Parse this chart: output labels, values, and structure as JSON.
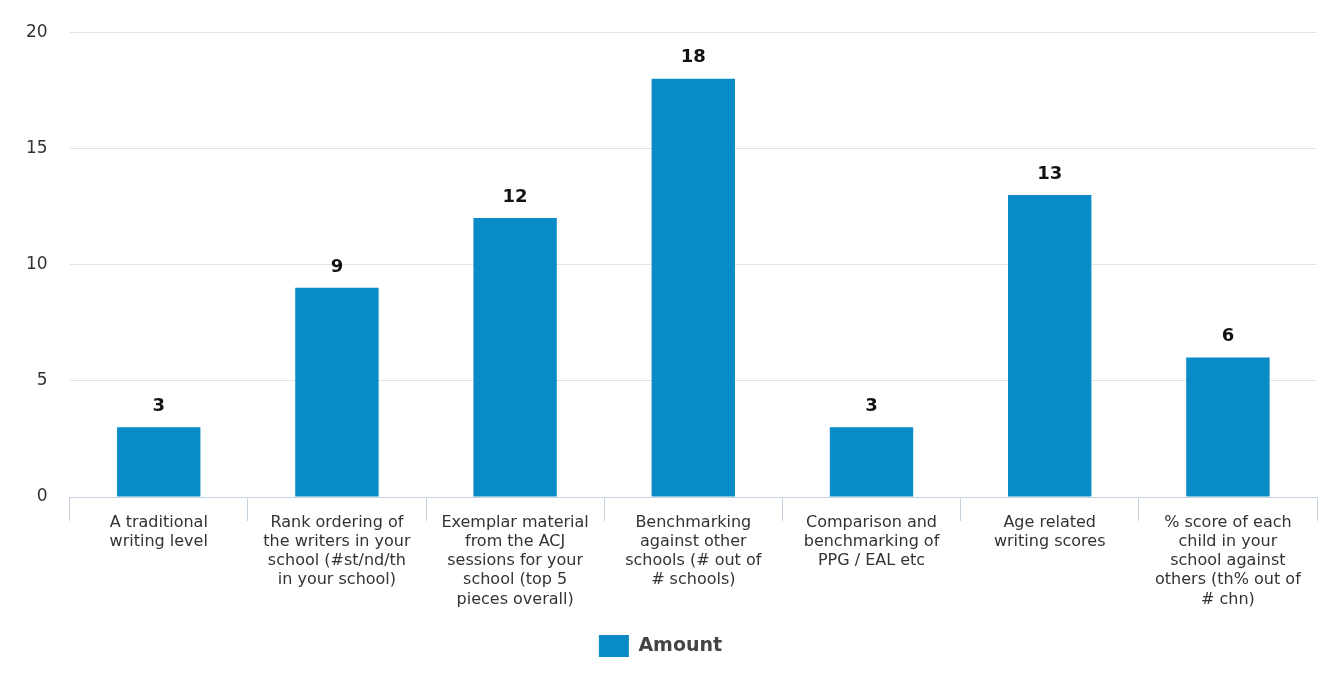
{
  "chart_data": {
    "type": "bar",
    "categories": [
      "A traditional writing level",
      "Rank ordering of the writers in your school (#st/nd/th in your school)",
      "Exemplar material from the ACJ sessions for your school (top 5 pieces overall)",
      "Benchmarking against other schools (# out of # schools)",
      "Comparison and benchmarking of PPG / EAL etc",
      "Age related writing scores",
      "% score of each child in your school against others (th% out of # chn)"
    ],
    "series": [
      {
        "name": "Amount",
        "color": "#088bc7",
        "values": [
          3,
          9,
          12,
          18,
          3,
          13,
          6
        ]
      }
    ],
    "ylim": [
      0,
      20
    ],
    "yticks": [
      0,
      5,
      10,
      15,
      20
    ],
    "grid": "y",
    "legend": "bottom",
    "data_labels": true
  }
}
